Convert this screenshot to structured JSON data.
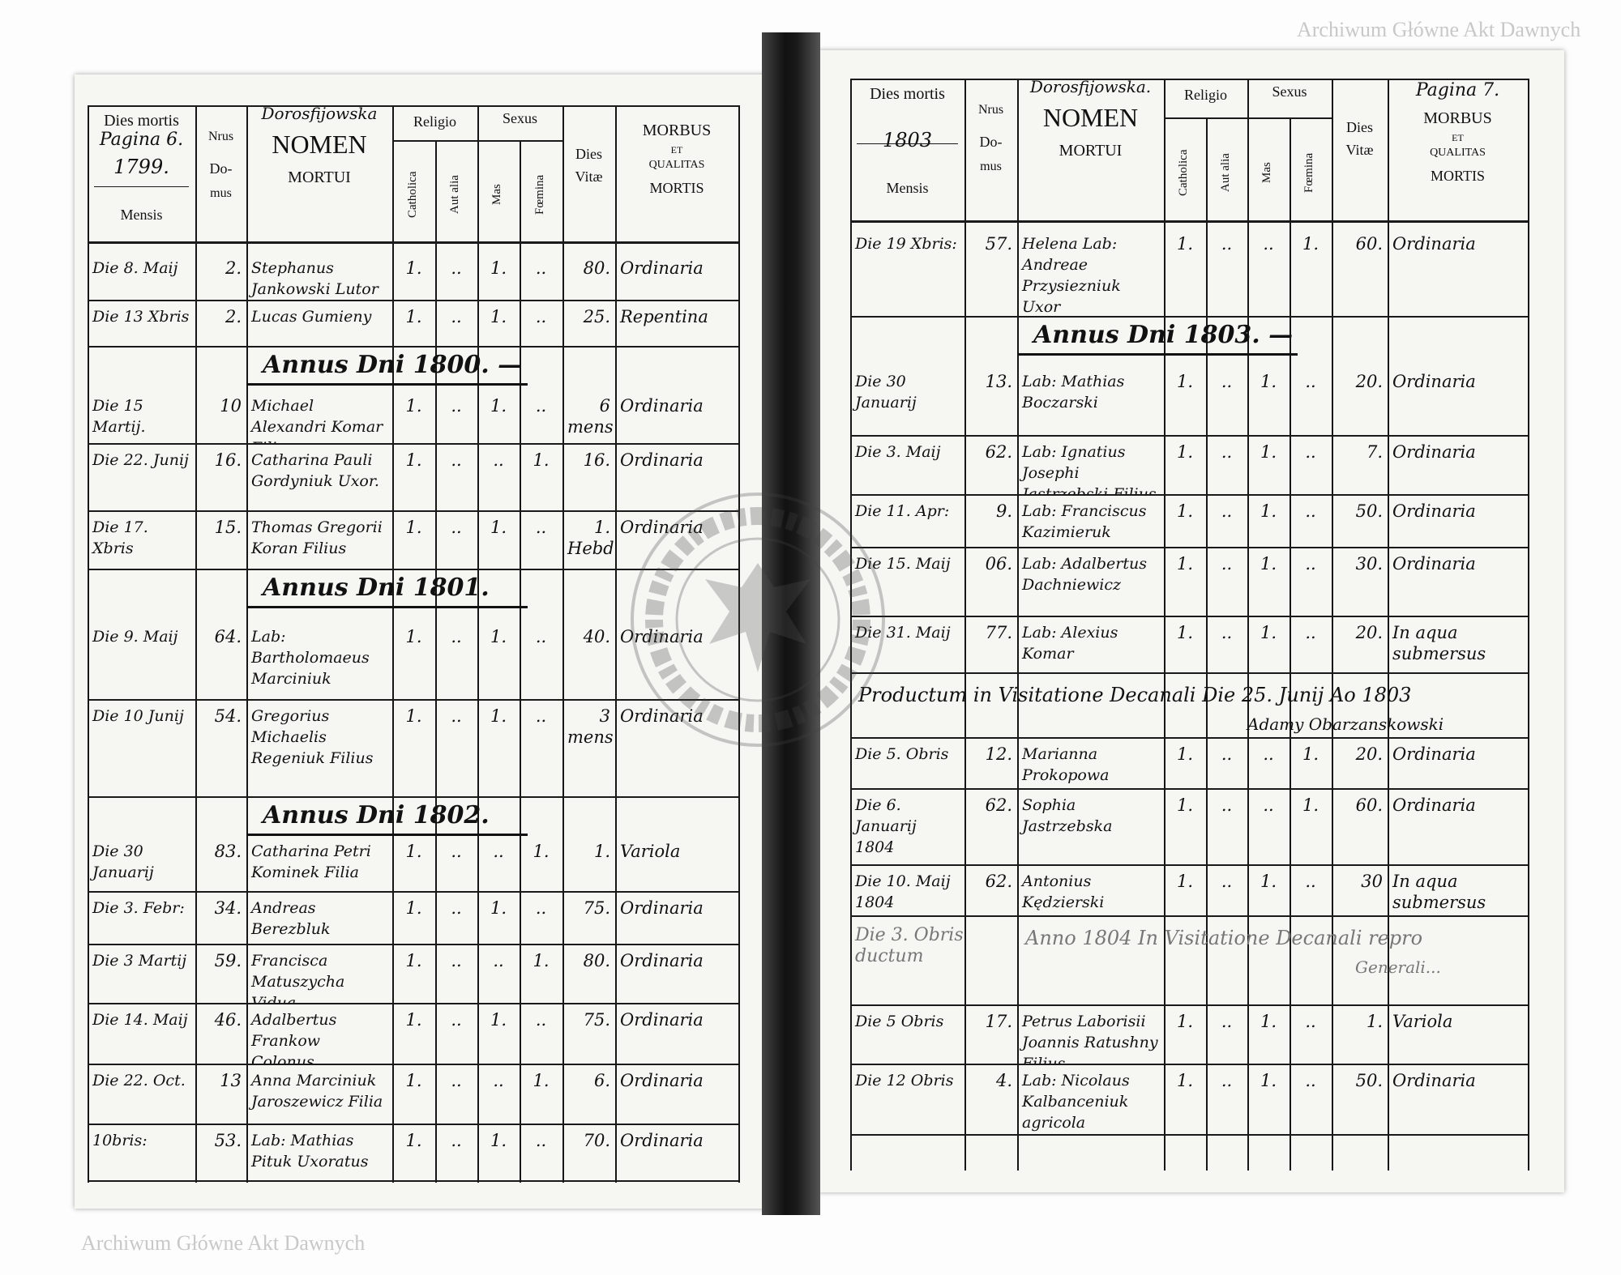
{
  "watermark": "Archiwum Główne Akt Dawnych",
  "stamp_text": "ARCHIWUM GŁÓWNE AKT DAWNYCH",
  "pages": [
    {
      "header": {
        "dies_mortis": "Dies mortis",
        "pagina": "Pagina 6.",
        "year": "1799.",
        "mensis": "Mensis",
        "nrus": "Nrus",
        "do": "Do-",
        "mus": "mus",
        "parish_note": "Dorosfijowska",
        "nomen": "NOMEN",
        "mortui": "MORTUI",
        "religio": "Religio",
        "catholica": "Catholica",
        "aut_alia": "Aut alia",
        "sexus": "Sexus",
        "mas": "Mas",
        "foemina": "Fœmina",
        "dies": "Dies",
        "vitae": "Vitæ",
        "morbus": "MORBUS",
        "et": "ET",
        "qualitas": "QUALITAS",
        "mortis": "MORTIS"
      },
      "rows": [
        {
          "date": "Die 8. Maij",
          "domus": "2.",
          "name": "Stephanus Jankowski Lutor",
          "catholica": "1.",
          "aut_alia": "..",
          "mas": "1.",
          "foemina": "..",
          "vitae": "80.",
          "morbus": "Ordinaria"
        },
        {
          "date": "Die 13 Xbris",
          "domus": "2.",
          "name": "Lucas Gumieny",
          "catholica": "1.",
          "aut_alia": "..",
          "mas": "1.",
          "foemina": "..",
          "vitae": "25.",
          "morbus": "Repentina"
        },
        {
          "heading": "Annus Dni 1800. —"
        },
        {
          "date": "Die 15 Martij.",
          "domus": "10",
          "name": "Michael Alexandri Komar Filius",
          "catholica": "1.",
          "aut_alia": "..",
          "mas": "1.",
          "foemina": "..",
          "vitae": "6 mens",
          "morbus": "Ordinaria"
        },
        {
          "date": "Die 22. Junij",
          "domus": "16.",
          "name": "Catharina Pauli Gordyniuk Uxor.",
          "catholica": "1.",
          "aut_alia": "..",
          "mas": "..",
          "foemina": "1.",
          "vitae": "16.",
          "morbus": "Ordinaria"
        },
        {
          "date": "Die 17. Xbris",
          "domus": "15.",
          "name": "Thomas Gregorii Koran Filius",
          "catholica": "1.",
          "aut_alia": "..",
          "mas": "1.",
          "foemina": "..",
          "vitae": "1. Hebd.",
          "morbus": "Ordinaria"
        },
        {
          "heading": "Annus Dni 1801."
        },
        {
          "date": "Die 9. Maij",
          "domus": "64.",
          "name": "Lab: Bartholomaeus Marciniuk",
          "catholica": "1.",
          "aut_alia": "..",
          "mas": "1.",
          "foemina": "..",
          "vitae": "40.",
          "morbus": "Ordinaria"
        },
        {
          "date": "Die 10 Junij",
          "domus": "54.",
          "name": "Gregorius Michaelis Regeniuk Filius",
          "catholica": "1.",
          "aut_alia": "..",
          "mas": "1.",
          "foemina": "..",
          "vitae": "3 mens",
          "morbus": "Ordinaria"
        },
        {
          "heading": "Annus Dni 1802."
        },
        {
          "date": "Die 30 Januarij",
          "domus": "83.",
          "name": "Catharina Petri Kominek Filia",
          "catholica": "1.",
          "aut_alia": "..",
          "mas": "..",
          "foemina": "1.",
          "vitae": "1.",
          "morbus": "Variola"
        },
        {
          "date": "Die 3. Febr:",
          "domus": "34.",
          "name": "Andreas Berezbluk Colonus",
          "catholica": "1.",
          "aut_alia": "..",
          "mas": "1.",
          "foemina": "..",
          "vitae": "75.",
          "morbus": "Ordinaria"
        },
        {
          "date": "Die 3 Martij",
          "domus": "59.",
          "name": "Francisca Matuszycha Vidua",
          "catholica": "1.",
          "aut_alia": "..",
          "mas": "..",
          "foemina": "1.",
          "vitae": "80.",
          "morbus": "Ordinaria"
        },
        {
          "date": "Die 14. Maij",
          "domus": "46.",
          "name": "Adalbertus Frankow Colonus",
          "catholica": "1.",
          "aut_alia": "..",
          "mas": "1.",
          "foemina": "..",
          "vitae": "75.",
          "morbus": "Ordinaria"
        },
        {
          "date": "Die 22. Oct.",
          "domus": "13",
          "name": "Anna Marciniuk Jaroszewicz Filia",
          "catholica": "1.",
          "aut_alia": "..",
          "mas": "..",
          "foemina": "1.",
          "vitae": "6.",
          "morbus": "Ordinaria"
        },
        {
          "date": "10bris:",
          "domus": "53.",
          "name": "Lab: Mathias Pituk Uxoratus",
          "catholica": "1.",
          "aut_alia": "..",
          "mas": "1.",
          "foemina": "..",
          "vitae": "70.",
          "morbus": "Ordinaria"
        }
      ]
    },
    {
      "header": {
        "dies_mortis": "Dies mortis",
        "pagina": "Pagina 7.",
        "year": "1803",
        "mensis": "Mensis",
        "nrus": "Nrus",
        "do": "Do-",
        "mus": "mus",
        "parish_note": "Dorosfijowska.",
        "nomen": "NOMEN",
        "mortui": "MORTUI",
        "religio": "Religio",
        "catholica": "Catholica",
        "aut_alia": "Aut alia",
        "sexus": "Sexus",
        "mas": "Mas",
        "foemina": "Fœmina",
        "dies": "Dies",
        "vitae": "Vitæ",
        "morbus": "MORBUS",
        "et": "ET",
        "qualitas": "QUALITAS",
        "mortis": "MORTIS"
      },
      "rows": [
        {
          "date": "Die 19 Xbris:",
          "domus": "57.",
          "name": "Helena Lab: Andreae Przysiezniuk Uxor",
          "catholica": "1.",
          "aut_alia": "..",
          "mas": "..",
          "foemina": "1.",
          "vitae": "60.",
          "morbus": "Ordinaria"
        },
        {
          "heading": "Annus Dni 1803. —"
        },
        {
          "date": "Die 30 Januarij",
          "domus": "13.",
          "name": "Lab: Mathias Boczarski",
          "catholica": "1.",
          "aut_alia": "..",
          "mas": "1.",
          "foemina": "..",
          "vitae": "20.",
          "morbus": "Ordinaria"
        },
        {
          "date": "Die 3. Maij",
          "domus": "62.",
          "name": "Lab: Ignatius Josephi Jastrzebski Filius",
          "catholica": "1.",
          "aut_alia": "..",
          "mas": "1.",
          "foemina": "..",
          "vitae": "7.",
          "morbus": "Ordinaria"
        },
        {
          "date": "Die 11. Apr:",
          "domus": "9.",
          "name": "Lab: Franciscus Kazimieruk",
          "catholica": "1.",
          "aut_alia": "..",
          "mas": "1.",
          "foemina": "..",
          "vitae": "50.",
          "morbus": "Ordinaria"
        },
        {
          "date": "Die 15. Maij",
          "domus": "06.",
          "name": "Lab: Adalbertus Dachniewicz",
          "catholica": "1.",
          "aut_alia": "..",
          "mas": "1.",
          "foemina": "..",
          "vitae": "30.",
          "morbus": "Ordinaria"
        },
        {
          "date": "Die 31. Maij",
          "domus": "77.",
          "name": "Lab: Alexius Komar",
          "catholica": "1.",
          "aut_alia": "..",
          "mas": "1.",
          "foemina": "..",
          "vitae": "20.",
          "morbus": "In aqua submersus"
        },
        {
          "annotation": "Productum in Visitatione Decanali Die 25. Junij Ao 1803",
          "annotation2": "Adamy Obarzanskowski"
        },
        {
          "date": "Die 5. Obris",
          "domus": "12.",
          "name": "Marianna Prokopowa",
          "catholica": "1.",
          "aut_alia": "..",
          "mas": "..",
          "foemina": "1.",
          "vitae": "20.",
          "morbus": "Ordinaria"
        },
        {
          "date": "Die 6. Januarij 1804",
          "domus": "62.",
          "name": "Sophia Jastrzebska",
          "catholica": "1.",
          "aut_alia": "..",
          "mas": "..",
          "foemina": "1.",
          "vitae": "60.",
          "morbus": "Ordinaria"
        },
        {
          "date": "Die 10. Maij 1804",
          "domus": "62.",
          "name": "Antonius Kędzierski",
          "catholica": "1.",
          "aut_alia": "..",
          "mas": "1.",
          "foemina": "..",
          "vitae": "30",
          "morbus": "In aqua submersus"
        },
        {
          "date": "Die 3. Obris ductum",
          "annotation": "Anno 1804 In Visitatione Decanali repro",
          "annotation2": "Generali..."
        },
        {
          "date": "Die 5 Obris",
          "domus": "17.",
          "name": "Petrus Laborisii Joannis Ratushny Filius",
          "catholica": "1.",
          "aut_alia": "..",
          "mas": "1.",
          "foemina": "..",
          "vitae": "1.",
          "morbus": "Variola"
        },
        {
          "date": "Die 12 Obris",
          "domus": "4.",
          "name": "Lab: Nicolaus Kalbanceniuk agricola",
          "catholica": "1.",
          "aut_alia": "..",
          "mas": "1.",
          "foemina": "..",
          "vitae": "50.",
          "morbus": "Ordinaria"
        }
      ]
    }
  ]
}
